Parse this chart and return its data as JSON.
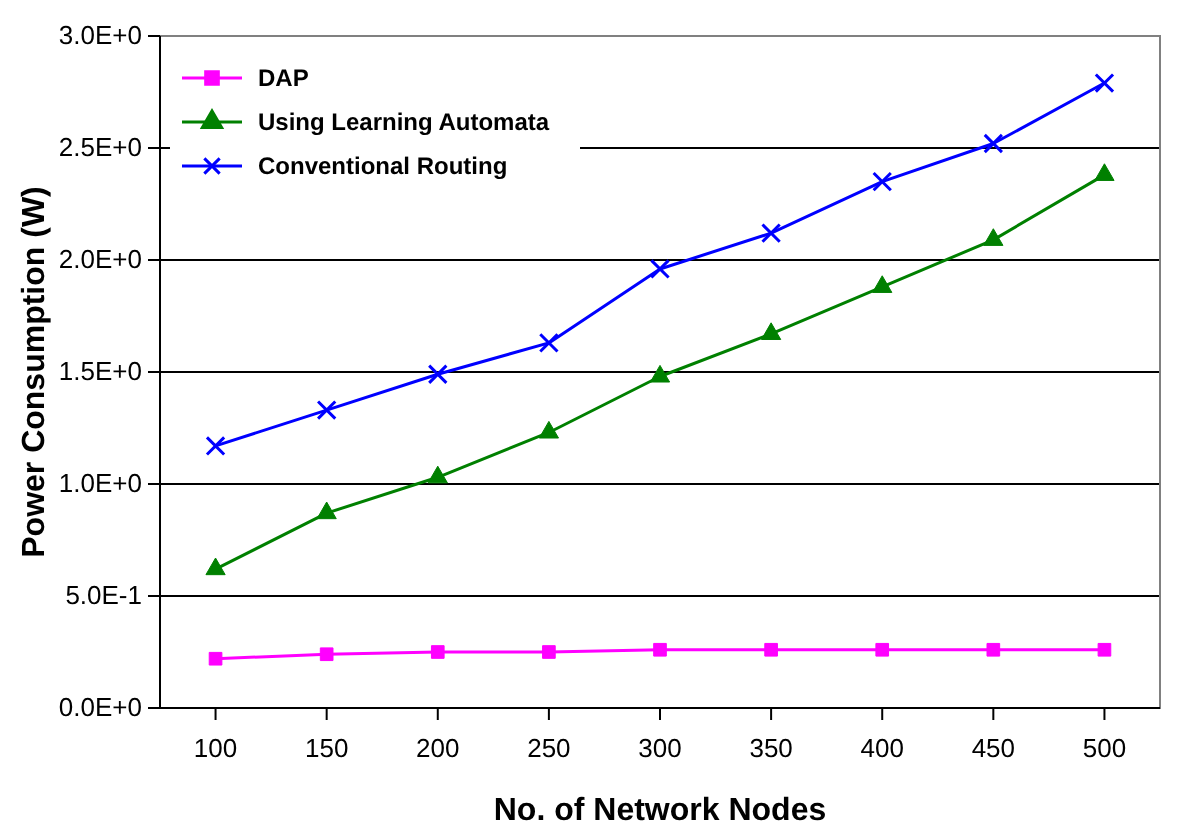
{
  "chart_data": {
    "type": "line",
    "xlabel": "No. of Network Nodes",
    "ylabel": "Power Consumption (W)",
    "categories": [
      "100",
      "150",
      "200",
      "250",
      "300",
      "350",
      "400",
      "450",
      "500"
    ],
    "series": [
      {
        "name": "DAP",
        "color": "#ff00ff",
        "marker": "square",
        "values": [
          0.22,
          0.24,
          0.25,
          0.25,
          0.26,
          0.26,
          0.26,
          0.26,
          0.26
        ]
      },
      {
        "name": "Using Learning Automata",
        "color": "#008000",
        "marker": "triangle",
        "values": [
          0.62,
          0.87,
          1.03,
          1.23,
          1.48,
          1.67,
          1.88,
          2.09,
          2.38
        ]
      },
      {
        "name": "Conventional Routing",
        "color": "#0000ff",
        "marker": "cross",
        "values": [
          1.17,
          1.33,
          1.49,
          1.63,
          1.96,
          2.12,
          2.35,
          2.52,
          2.79
        ]
      }
    ],
    "ylim": [
      0,
      3
    ],
    "yticks": [
      {
        "value": 0,
        "label": "0.0E+0"
      },
      {
        "value": 0.5,
        "label": "5.0E-1"
      },
      {
        "value": 1,
        "label": "1.0E+0"
      },
      {
        "value": 1.5,
        "label": "1.5E+0"
      },
      {
        "value": 2,
        "label": "2.0E+0"
      },
      {
        "value": 2.5,
        "label": "2.5E+0"
      },
      {
        "value": 3,
        "label": "3.0E+0"
      }
    ],
    "grid": "y",
    "legend": "top left",
    "line_style": "solid"
  }
}
